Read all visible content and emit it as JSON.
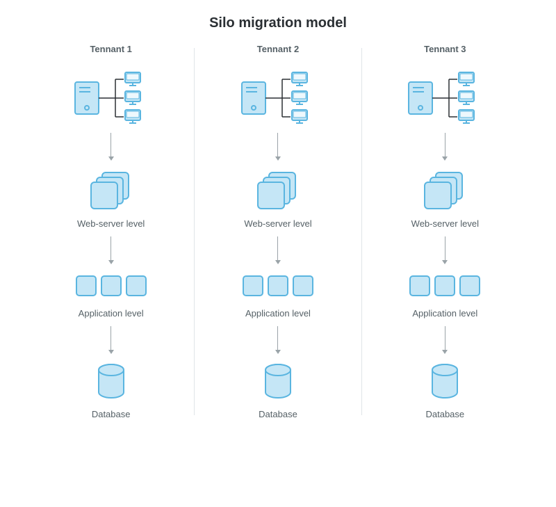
{
  "title": "Silo migration model",
  "type": "infographic",
  "background_color": "#ffffff",
  "divider_color": "#dfe4e8",
  "arrow_color": "#9aa3a8",
  "stroke_color": "#5ab5e0",
  "fill_color": "#c5e6f6",
  "inner_fill_color": "#eef8fd",
  "stroke_width": 2,
  "title_fontsize": 20,
  "label_fontsize": 13,
  "title_color": "#2a2f33",
  "label_color": "#556066",
  "columns": [
    {
      "title": "Tennant 1"
    },
    {
      "title": "Tennant 2"
    },
    {
      "title": "Tennant 3"
    }
  ],
  "tiers": [
    {
      "key": "server",
      "label": null
    },
    {
      "key": "web",
      "label": "Web-server level"
    },
    {
      "key": "app",
      "label": "Application level"
    },
    {
      "key": "db",
      "label": "Database"
    }
  ]
}
